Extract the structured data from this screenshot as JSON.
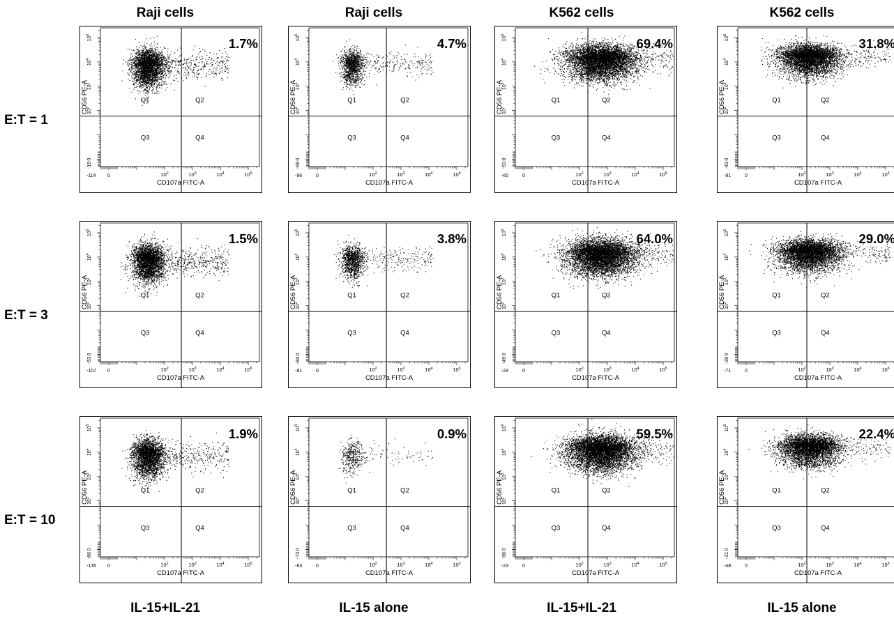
{
  "column_headers": [
    "Raji cells",
    "Raji cells",
    "K562 cells",
    "K562 cells"
  ],
  "row_labels": [
    "E:T = 1",
    "E:T = 3",
    "E:T = 10"
  ],
  "column_footers": [
    "IL-15+IL-21",
    "IL-15 alone",
    "IL-15+IL-21",
    "IL-15 alone"
  ],
  "colors": {
    "dots": "#000000",
    "frame": "#000000",
    "background": "#ffffff"
  },
  "chart_data": [
    {
      "type": "scatter",
      "row": 0,
      "col": 0,
      "target": "Raji cells",
      "condition": "IL-15+IL-21",
      "et_ratio": "E:T = 1",
      "percent_label": "1.7%",
      "xlabel": "CD107a FITC-A",
      "ylabel": "CD56 PE-A",
      "x_min_label": "-114",
      "y_min_label": "-19",
      "x_ticks": [
        "0",
        "10^2",
        "10^3",
        "10^4",
        "10^5"
      ],
      "y_ticks": [
        "0",
        "10^2",
        "10^3",
        "10^4",
        "10^5"
      ],
      "quadrants": [
        "Q1",
        "Q2",
        "Q3",
        "Q4"
      ],
      "gate_x": 400,
      "gate_y": 60,
      "events": 3500
    },
    {
      "type": "scatter",
      "row": 0,
      "col": 1,
      "target": "Raji cells",
      "condition": "IL-15 alone",
      "et_ratio": "E:T = 1",
      "percent_label": "4.7%",
      "xlabel": "CD107a FITC-A",
      "ylabel": "CD56 PE-A",
      "x_min_label": "-96",
      "y_min_label": "-68",
      "x_ticks": [
        "0",
        "10^2",
        "10^3",
        "10^4",
        "10^5"
      ],
      "y_ticks": [
        "0",
        "10^2",
        "10^3",
        "10^4",
        "10^5"
      ],
      "quadrants": [
        "Q1",
        "Q2",
        "Q3",
        "Q4"
      ],
      "gate_x": 300,
      "gate_y": 60,
      "events": 1500
    },
    {
      "type": "scatter",
      "row": 0,
      "col": 2,
      "target": "K562 cells",
      "condition": "IL-15+IL-21",
      "et_ratio": "E:T = 1",
      "percent_label": "69.4%",
      "xlabel": "CD107a FITC-A",
      "ylabel": "CD56 PE-A",
      "x_min_label": "-60",
      "y_min_label": "-51",
      "x_ticks": [
        "0",
        "10^2",
        "10^3",
        "10^4",
        "10^5"
      ],
      "y_ticks": [
        "0",
        "10^2",
        "10^3",
        "10^4",
        "10^5"
      ],
      "quadrants": [
        "Q1",
        "Q2",
        "Q3",
        "Q4"
      ],
      "gate_x": 200,
      "gate_y": 60,
      "events": 6000
    },
    {
      "type": "scatter",
      "row": 0,
      "col": 3,
      "target": "K562 cells",
      "condition": "IL-15 alone",
      "et_ratio": "E:T = 1",
      "percent_label": "31.8%",
      "xlabel": "CD107a FITC-A",
      "ylabel": "CD56 PE-A",
      "x_min_label": "-81",
      "y_min_label": "-43",
      "x_ticks": [
        "0",
        "10^2",
        "10^3",
        "10^4",
        "10^5"
      ],
      "y_ticks": [
        "0",
        "10^2",
        "10^3",
        "10^4",
        "10^5"
      ],
      "quadrants": [
        "Q1",
        "Q2",
        "Q3",
        "Q4"
      ],
      "gate_x": 150,
      "gate_y": 60,
      "events": 5000
    },
    {
      "type": "scatter",
      "row": 1,
      "col": 0,
      "target": "Raji cells",
      "condition": "IL-15+IL-21",
      "et_ratio": "E:T = 3",
      "percent_label": "1.5%",
      "xlabel": "CD107a FITC-A",
      "ylabel": "CD56 PE-A",
      "x_min_label": "-107",
      "y_min_label": "-53",
      "x_ticks": [
        "0",
        "10^2",
        "10^3",
        "10^4",
        "10^5"
      ],
      "y_ticks": [
        "0",
        "10^2",
        "10^3",
        "10^4",
        "10^5"
      ],
      "quadrants": [
        "Q1",
        "Q2",
        "Q3",
        "Q4"
      ],
      "gate_x": 400,
      "gate_y": 60,
      "events": 3500
    },
    {
      "type": "scatter",
      "row": 1,
      "col": 1,
      "target": "Raji cells",
      "condition": "IL-15 alone",
      "et_ratio": "E:T = 3",
      "percent_label": "3.8%",
      "xlabel": "CD107a FITC-A",
      "ylabel": "CD56 PE-A",
      "x_min_label": "-81",
      "y_min_label": "-84",
      "x_ticks": [
        "0",
        "10^2",
        "10^3",
        "10^4",
        "10^5"
      ],
      "y_ticks": [
        "0",
        "10^2",
        "10^3",
        "10^4",
        "10^5"
      ],
      "quadrants": [
        "Q1",
        "Q2",
        "Q3",
        "Q4"
      ],
      "gate_x": 300,
      "gate_y": 60,
      "events": 1300
    },
    {
      "type": "scatter",
      "row": 1,
      "col": 2,
      "target": "K562 cells",
      "condition": "IL-15+IL-21",
      "et_ratio": "E:T = 3",
      "percent_label": "64.0%",
      "xlabel": "CD107a FITC-A",
      "ylabel": "CD56 PE-A",
      "x_min_label": "-24",
      "y_min_label": "-49",
      "x_ticks": [
        "0",
        "10^2",
        "10^3",
        "10^4",
        "10^5"
      ],
      "y_ticks": [
        "0",
        "10^2",
        "10^3",
        "10^4",
        "10^5"
      ],
      "quadrants": [
        "Q1",
        "Q2",
        "Q3",
        "Q4"
      ],
      "gate_x": 200,
      "gate_y": 60,
      "events": 6000
    },
    {
      "type": "scatter",
      "row": 1,
      "col": 3,
      "target": "K562 cells",
      "condition": "IL-15 alone",
      "et_ratio": "E:T = 3",
      "percent_label": "29.0%",
      "xlabel": "CD107a FITC-A",
      "ylabel": "CD56 PE-A",
      "x_min_label": "-71",
      "y_min_label": "-39",
      "x_ticks": [
        "0",
        "10^2",
        "10^3",
        "10^4",
        "10^5"
      ],
      "y_ticks": [
        "0",
        "10^2",
        "10^3",
        "10^4",
        "10^5"
      ],
      "quadrants": [
        "Q1",
        "Q2",
        "Q3",
        "Q4"
      ],
      "gate_x": 150,
      "gate_y": 60,
      "events": 5000
    },
    {
      "type": "scatter",
      "row": 2,
      "col": 0,
      "target": "Raji cells",
      "condition": "IL-15+IL-21",
      "et_ratio": "E:T = 10",
      "percent_label": "1.9%",
      "xlabel": "CD107a FITC-A",
      "ylabel": "CD56 PE-A",
      "x_min_label": "-135",
      "y_min_label": "-66",
      "x_ticks": [
        "0",
        "10^2",
        "10^3",
        "10^4",
        "10^5"
      ],
      "y_ticks": [
        "0",
        "10^2",
        "10^3",
        "10^4",
        "10^5"
      ],
      "quadrants": [
        "Q1",
        "Q2",
        "Q3",
        "Q4"
      ],
      "gate_x": 400,
      "gate_y": 60,
      "events": 3200
    },
    {
      "type": "scatter",
      "row": 2,
      "col": 1,
      "target": "Raji cells",
      "condition": "IL-15 alone",
      "et_ratio": "E:T = 10",
      "percent_label": "0.9%",
      "xlabel": "CD107a FITC-A",
      "ylabel": "CD56 PE-A",
      "x_min_label": "-63",
      "y_min_label": "-73",
      "x_ticks": [
        "0",
        "10^2",
        "10^3",
        "10^4",
        "10^5"
      ],
      "y_ticks": [
        "0",
        "10^2",
        "10^3",
        "10^4",
        "10^5"
      ],
      "quadrants": [
        "Q1",
        "Q2",
        "Q3",
        "Q4"
      ],
      "gate_x": 300,
      "gate_y": 60,
      "events": 450
    },
    {
      "type": "scatter",
      "row": 2,
      "col": 2,
      "target": "K562 cells",
      "condition": "IL-15+IL-21",
      "et_ratio": "E:T = 10",
      "percent_label": "59.5%",
      "xlabel": "CD107a FITC-A",
      "ylabel": "CD56 PE-A",
      "x_min_label": "-23",
      "y_min_label": "-36",
      "x_ticks": [
        "0",
        "10^2",
        "10^3",
        "10^4",
        "10^5"
      ],
      "y_ticks": [
        "0",
        "10^2",
        "10^3",
        "10^4",
        "10^5"
      ],
      "quadrants": [
        "Q1",
        "Q2",
        "Q3",
        "Q4"
      ],
      "gate_x": 200,
      "gate_y": 60,
      "events": 6000
    },
    {
      "type": "scatter",
      "row": 2,
      "col": 3,
      "target": "K562 cells",
      "condition": "IL-15 alone",
      "et_ratio": "E:T = 10",
      "percent_label": "22.4%",
      "xlabel": "CD107a FITC-A",
      "ylabel": "CD56 PE-A",
      "x_min_label": "-48",
      "y_min_label": "-31",
      "x_ticks": [
        "0",
        "10^2",
        "10^3",
        "10^4",
        "10^5"
      ],
      "y_ticks": [
        "0",
        "10^2",
        "10^3",
        "10^4",
        "10^5"
      ],
      "quadrants": [
        "Q1",
        "Q2",
        "Q3",
        "Q4"
      ],
      "gate_x": 150,
      "gate_y": 60,
      "events": 4500
    }
  ]
}
